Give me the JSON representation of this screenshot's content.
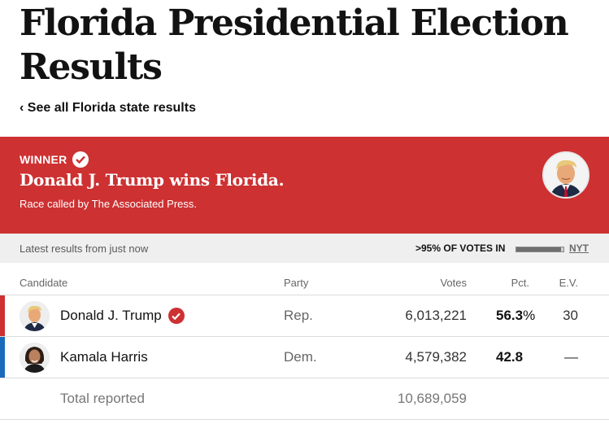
{
  "page": {
    "title": "Florida Presidential Election Results",
    "back_link": "‹ See all Florida state results"
  },
  "winner": {
    "label": "WINNER",
    "headline": "Donald J. Trump wins Florida.",
    "subtext": "Race called by The Associated Press.",
    "banner_color": "#cd3132",
    "photo": "donald-trump-headshot"
  },
  "status": {
    "latest": "Latest results from just now",
    "reporting": ">95% OF VOTES IN",
    "reporting_fraction": 0.95,
    "source": "NYT"
  },
  "table": {
    "headers": {
      "candidate": "Candidate",
      "party": "Party",
      "votes": "Votes",
      "pct": "Pct.",
      "ev": "E.V."
    },
    "rows": [
      {
        "name": "Donald J. Trump",
        "party": "Rep.",
        "votes": "6,013,221",
        "pct": "56.3",
        "pct_sign": "%",
        "ev": "30",
        "winner": true,
        "color": "#cd3132"
      },
      {
        "name": "Kamala Harris",
        "party": "Dem.",
        "votes": "4,579,382",
        "pct": "42.8",
        "pct_sign": "",
        "ev": "—",
        "winner": false,
        "color": "#1a6aba"
      }
    ],
    "total": {
      "label": "Total reported",
      "votes": "10,689,059"
    }
  },
  "icons": {
    "winner_check": "checkmark-circle-icon",
    "back": "chevron-left"
  }
}
